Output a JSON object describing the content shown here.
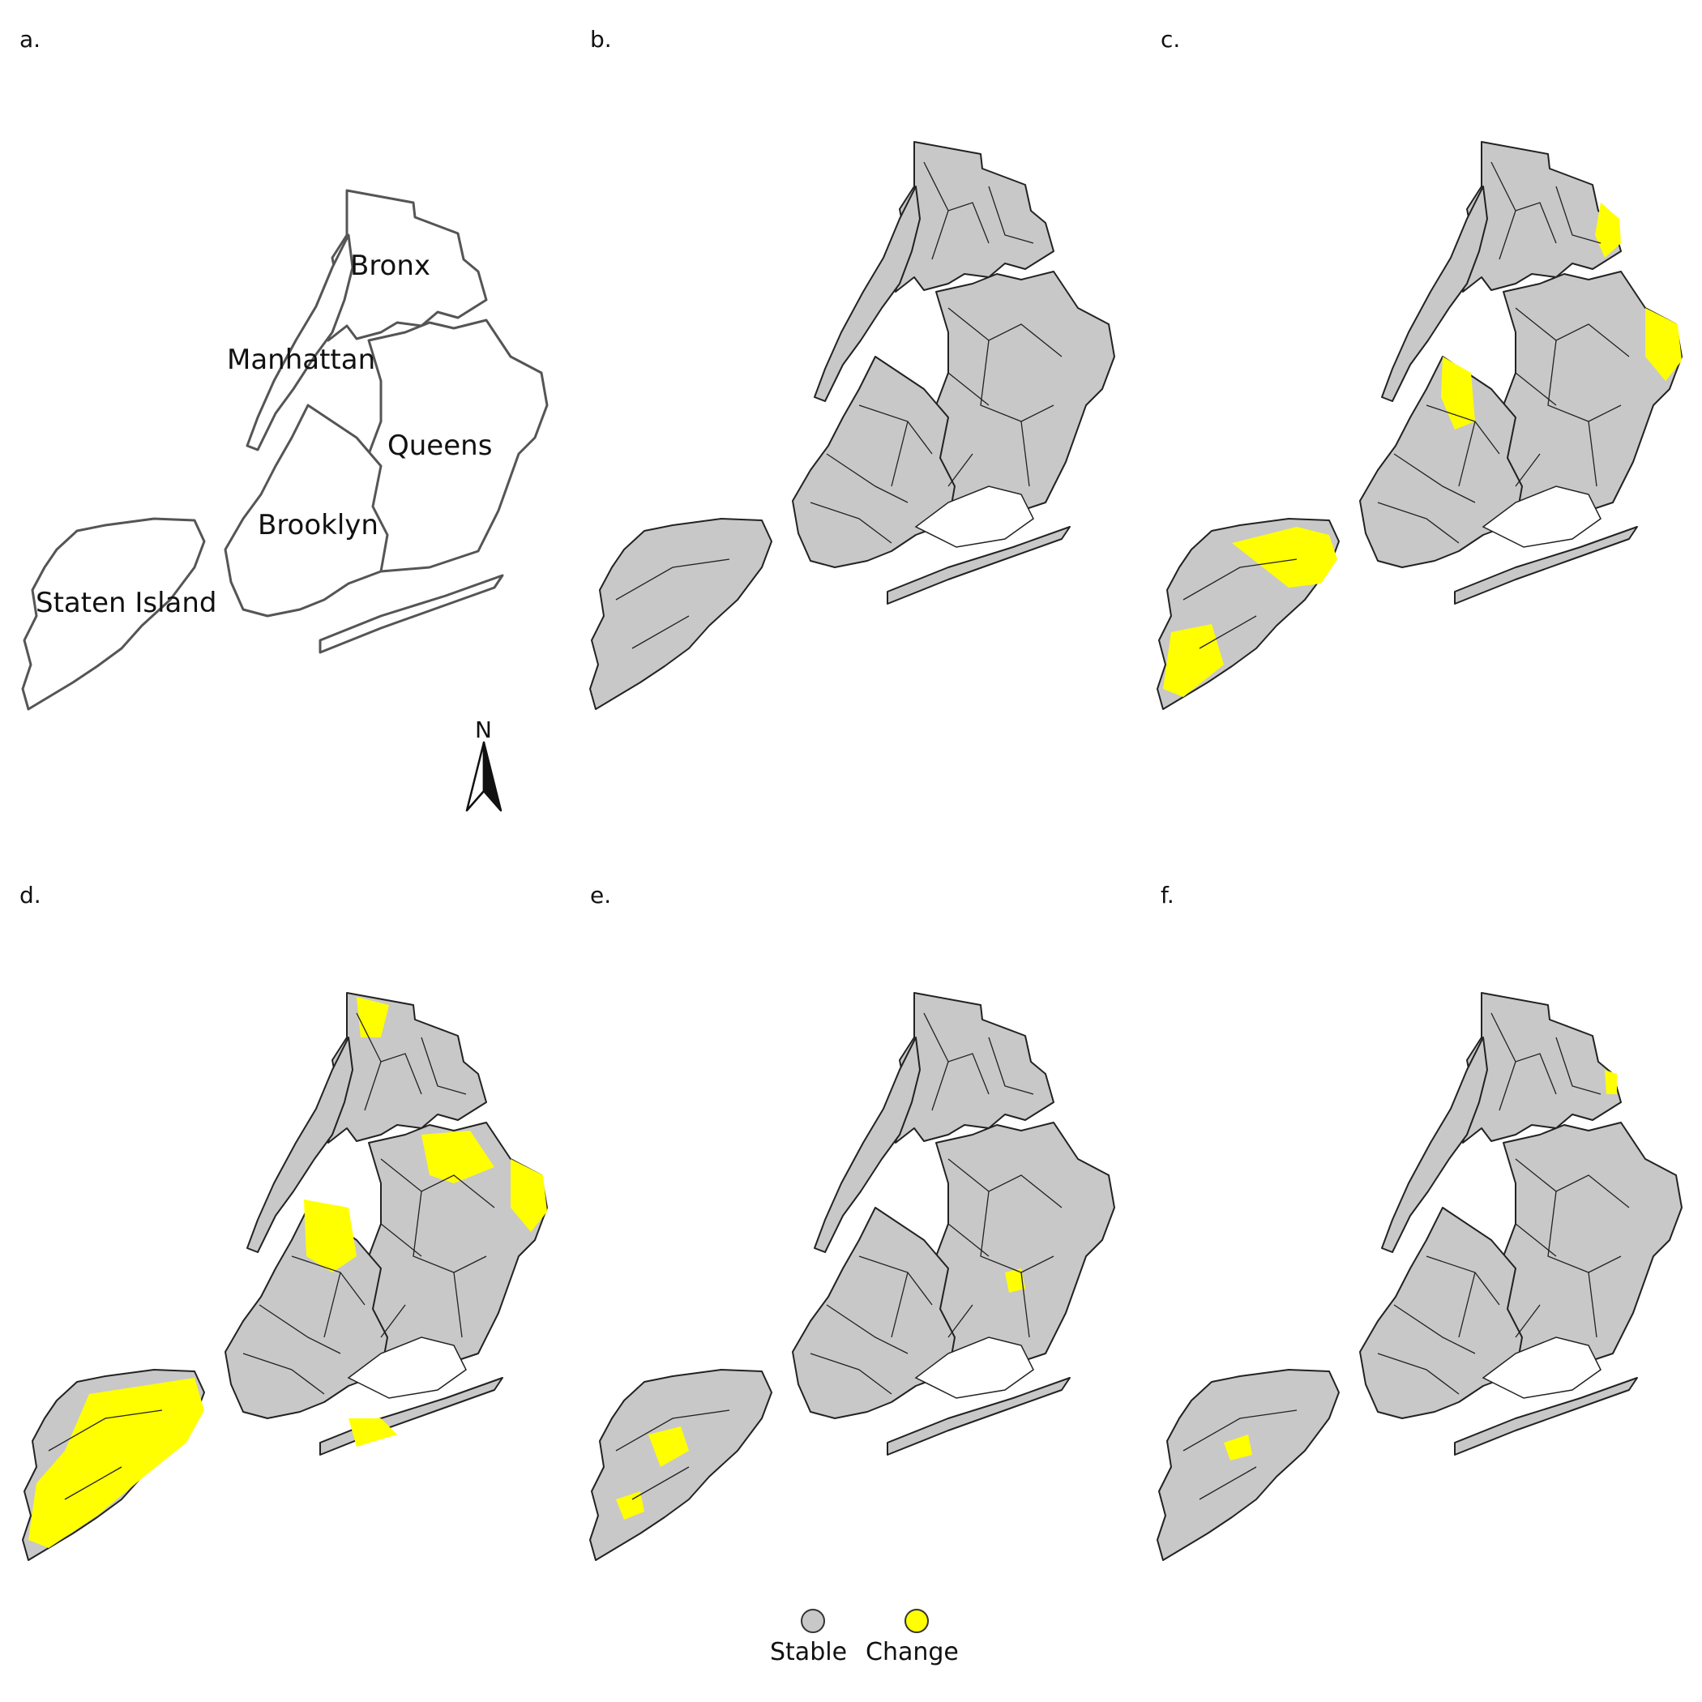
{
  "panels": [
    {
      "label": "a.",
      "kind": "reference"
    },
    {
      "label": "b.",
      "kind": "map"
    },
    {
      "label": "c.",
      "kind": "map"
    },
    {
      "label": "d.",
      "kind": "map"
    },
    {
      "label": "e.",
      "kind": "map"
    },
    {
      "label": "f.",
      "kind": "map"
    }
  ],
  "boroughs": {
    "bronx": "Bronx",
    "manhattan": "Manhattan",
    "queens": "Queens",
    "brooklyn": "Brooklyn",
    "staten_island": "Staten Island"
  },
  "north_arrow": {
    "letter": "N"
  },
  "legend": {
    "stable": {
      "label": "Stable",
      "color": "#c8c8c8"
    },
    "change": {
      "label": "Change",
      "color": "#ffff00"
    }
  },
  "colors": {
    "stable": "#c8c8c8",
    "change": "#ffff00",
    "border": "#222222",
    "reference_outline": "#555555"
  }
}
